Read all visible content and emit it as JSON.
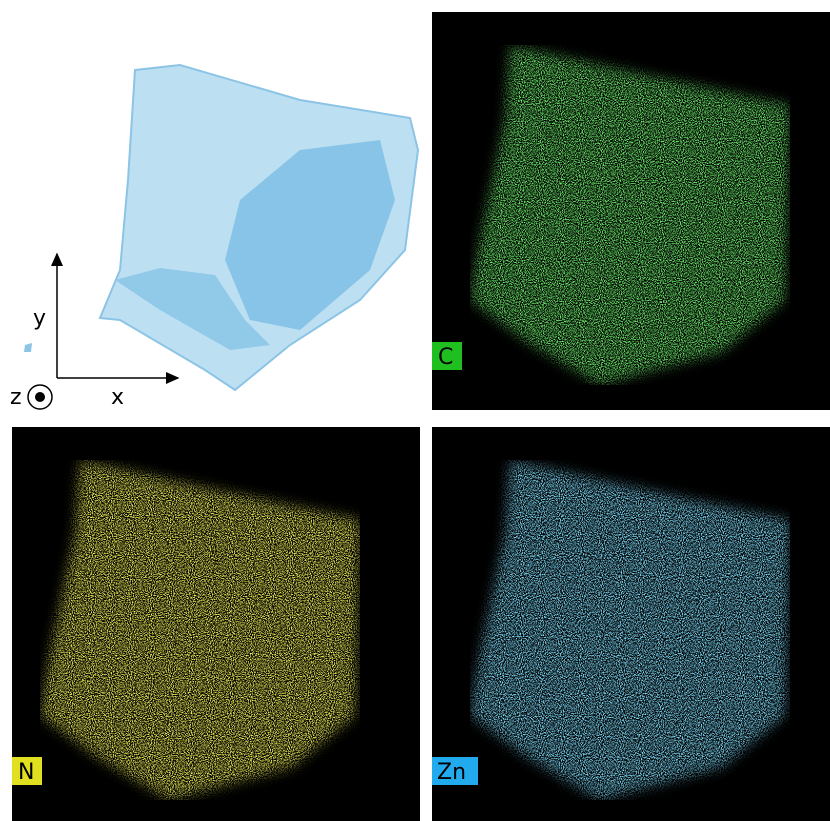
{
  "axes": {
    "y": "y",
    "x": "x",
    "z": "z"
  },
  "panels": [
    {
      "label": "C"
    },
    {
      "label": "N"
    },
    {
      "label": "Zn"
    }
  ]
}
